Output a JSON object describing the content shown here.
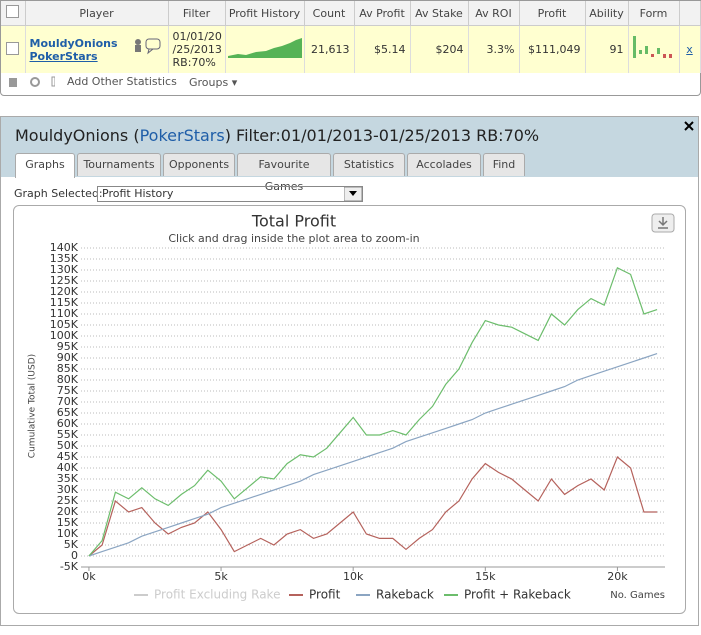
{
  "table": {
    "headers": [
      "Player",
      "Filter",
      "Profit History",
      "Count",
      "Av Profit",
      "Av Stake",
      "Av ROI",
      "Profit",
      "Ability",
      "Form"
    ],
    "row": {
      "player": "MouldyOnions",
      "site": "PokerStars",
      "filter": [
        "01/01/20",
        "/25/2013",
        "RB:70%"
      ],
      "count": "21,613",
      "av_profit": "$5.14",
      "av_stake": "$204",
      "av_roi": "3.3%",
      "profit": "$111,049",
      "ability": "91",
      "remove": "x"
    }
  },
  "toolbar": {
    "add": "Add Other Statistics",
    "groups": "Groups"
  },
  "panel": {
    "title": [
      "MouldyOnions (",
      "PokerStars",
      ") Filter:01/01/2013-01/25/2013 RB:70%"
    ],
    "tabs": [
      "Graphs",
      "Tournaments",
      "Opponents",
      "Favourite Games",
      "Statistics",
      "Accolades",
      "Find"
    ],
    "graph_label": "Graph Selected:",
    "graph_value": "Profit History"
  },
  "chart_data": {
    "type": "line",
    "title": "Total Profit",
    "subtitle": "Click and drag inside the plot area to zoom-in",
    "y_label": "Cumulative Total (USD)",
    "x_label": "No. Games",
    "x": [
      0,
      500,
      1000,
      1500,
      2000,
      2500,
      3000,
      3500,
      4000,
      4500,
      5000,
      5500,
      6000,
      6500,
      7000,
      7500,
      8000,
      8500,
      9000,
      9500,
      10000,
      10500,
      11000,
      11500,
      12000,
      12500,
      13000,
      13500,
      14000,
      14500,
      15000,
      15500,
      16000,
      16500,
      17000,
      17500,
      18000,
      18500,
      19000,
      19500,
      20000,
      20500,
      21000,
      21500
    ],
    "xlim": [
      -300,
      21800
    ],
    "xticks": [
      {
        "value": 0,
        "label": "0k"
      },
      {
        "value": 5000,
        "label": "5k"
      },
      {
        "value": 10000,
        "label": "10k"
      },
      {
        "value": 15000,
        "label": "15k"
      },
      {
        "value": 20000,
        "label": "20k"
      }
    ],
    "ylim": [
      -5000,
      140000
    ],
    "yticks": [
      {
        "value": -5000,
        "label": "-5K"
      },
      0,
      {
        "value": 5000,
        "label": "5K"
      },
      {
        "value": 10000,
        "label": "10K"
      },
      {
        "value": 15000,
        "label": "15K"
      },
      {
        "value": 20000,
        "label": "20K"
      },
      {
        "value": 25000,
        "label": "25K"
      },
      {
        "value": 30000,
        "label": "30K"
      },
      {
        "value": 35000,
        "label": "35K"
      },
      {
        "value": 40000,
        "label": "40K"
      },
      {
        "value": 45000,
        "label": "45K"
      },
      {
        "value": 50000,
        "label": "50K"
      },
      {
        "value": 55000,
        "label": "55K"
      },
      {
        "value": 60000,
        "label": "60K"
      },
      {
        "value": 65000,
        "label": "65K"
      },
      {
        "value": 70000,
        "label": "70K"
      },
      {
        "value": 75000,
        "label": "75K"
      },
      {
        "value": 80000,
        "label": "80K"
      },
      {
        "value": 85000,
        "label": "85K"
      },
      {
        "value": 90000,
        "label": "90K"
      },
      {
        "value": 95000,
        "label": "95K"
      },
      {
        "value": 100000,
        "label": "100K"
      },
      {
        "value": 105000,
        "label": "105K"
      },
      {
        "value": 110000,
        "label": "110K"
      },
      {
        "value": 115000,
        "label": "115K"
      },
      {
        "value": 120000,
        "label": "120K"
      },
      {
        "value": 125000,
        "label": "125K"
      },
      {
        "value": 130000,
        "label": "130K"
      },
      {
        "value": 135000,
        "label": "135K"
      },
      {
        "value": 140000,
        "label": "140K"
      }
    ],
    "grid": true,
    "legend": "bottom",
    "series": [
      {
        "name": "Profit Excluding Rake",
        "color": "#cccccc",
        "hidden": true,
        "values": [
          null,
          null,
          null,
          null,
          null,
          null,
          null,
          null,
          null,
          null,
          null,
          null,
          null,
          null,
          null,
          null,
          null,
          null,
          null,
          null,
          null,
          null,
          null,
          null,
          null,
          null,
          null,
          null,
          null,
          null,
          null,
          null,
          null,
          null,
          null,
          null,
          null,
          null,
          null,
          null,
          null,
          null,
          null,
          null
        ]
      },
      {
        "name": "Profit",
        "color": "#b5625c",
        "values": [
          0,
          5000,
          25000,
          20000,
          22000,
          15000,
          10000,
          13000,
          15000,
          20000,
          12000,
          2000,
          5000,
          8000,
          5000,
          10000,
          12000,
          8000,
          10000,
          15000,
          20000,
          10000,
          8000,
          8000,
          3000,
          8000,
          12000,
          20000,
          25000,
          35000,
          42000,
          38000,
          35000,
          30000,
          25000,
          35000,
          28000,
          32000,
          35000,
          30000,
          45000,
          40000,
          20000,
          20000
        ]
      },
      {
        "name": "Rakeback",
        "color": "#8ba5c2",
        "values": [
          0,
          2000,
          4000,
          6000,
          9000,
          11000,
          13000,
          15000,
          17000,
          19000,
          22000,
          24000,
          26000,
          28000,
          30000,
          32000,
          34000,
          37000,
          39000,
          41000,
          43000,
          45000,
          47000,
          49000,
          52000,
          54000,
          56000,
          58000,
          60000,
          62000,
          65000,
          67000,
          69000,
          71000,
          73000,
          75000,
          77000,
          80000,
          82000,
          84000,
          86000,
          88000,
          90000,
          92000
        ]
      },
      {
        "name": "Profit + Rakeback",
        "color": "#6cbd6c",
        "values": [
          0,
          7000,
          29000,
          26000,
          31000,
          26000,
          23000,
          28000,
          32000,
          39000,
          34000,
          26000,
          31000,
          36000,
          35000,
          42000,
          46000,
          45000,
          49000,
          56000,
          63000,
          55000,
          55000,
          57000,
          55000,
          62000,
          68000,
          78000,
          85000,
          97000,
          107000,
          105000,
          104000,
          101000,
          98000,
          110000,
          105000,
          112000,
          117000,
          114000,
          131000,
          128000,
          110000,
          112000
        ]
      }
    ]
  }
}
